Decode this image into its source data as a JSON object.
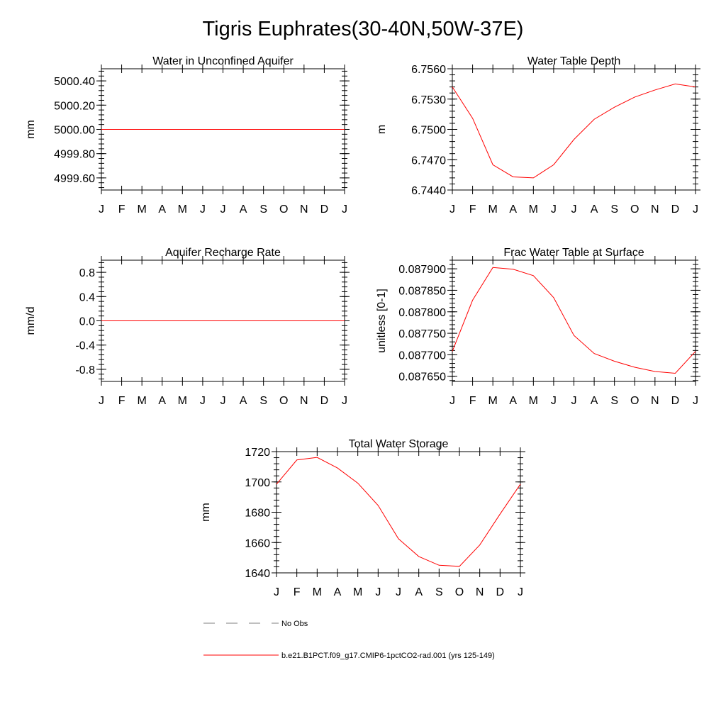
{
  "figure": {
    "title": "Tigris Euphrates(30-40N,50W-37E)"
  },
  "colors": {
    "model_line": "#ff0000",
    "obs_line": "#7f7f7f",
    "axis": "#000000"
  },
  "chart_data": [
    {
      "type": "line",
      "title": "Water in Unconfined Aquifer",
      "xlabel": "",
      "ylabel": "mm",
      "x": [
        "J",
        "F",
        "M",
        "A",
        "M",
        "J",
        "J",
        "A",
        "S",
        "O",
        "N",
        "D",
        "J"
      ],
      "ylim": [
        4999.5,
        5000.5
      ],
      "yticks": [
        4999.6,
        4999.8,
        5000.0,
        5000.2,
        5000.4
      ],
      "ytick_labels": [
        "4999.60",
        "4999.80",
        "5000.00",
        "5000.20",
        "5000.40"
      ],
      "series": [
        {
          "values": [
            5000.0,
            5000.0,
            5000.0,
            5000.0,
            5000.0,
            5000.0,
            5000.0,
            5000.0,
            5000.0,
            5000.0,
            5000.0,
            5000.0,
            5000.0
          ]
        }
      ]
    },
    {
      "type": "line",
      "title": "Water Table Depth",
      "xlabel": "",
      "ylabel": "m",
      "x": [
        "J",
        "F",
        "M",
        "A",
        "M",
        "J",
        "J",
        "A",
        "S",
        "O",
        "N",
        "D",
        "J"
      ],
      "ylim": [
        6.744,
        6.756
      ],
      "yticks": [
        6.744,
        6.747,
        6.75,
        6.753,
        6.756
      ],
      "ytick_labels": [
        "6.7440",
        "6.7470",
        "6.7500",
        "6.7530",
        "6.7560"
      ],
      "series": [
        {
          "values": [
            6.7542,
            6.7511,
            6.7465,
            6.7453,
            6.7452,
            6.7465,
            6.749,
            6.751,
            6.7522,
            6.7532,
            6.7539,
            6.7545,
            6.7542
          ]
        }
      ]
    },
    {
      "type": "line",
      "title": "Aquifer Recharge Rate",
      "xlabel": "",
      "ylabel": "mm/d",
      "x": [
        "J",
        "F",
        "M",
        "A",
        "M",
        "J",
        "J",
        "A",
        "S",
        "O",
        "N",
        "D",
        "J"
      ],
      "ylim": [
        -1.0,
        1.0
      ],
      "yticks": [
        -0.8,
        -0.4,
        0.0,
        0.4,
        0.8
      ],
      "ytick_labels": [
        "-0.8",
        "-0.4",
        "0.0",
        "0.4",
        "0.8"
      ],
      "series": [
        {
          "values": [
            0,
            0,
            0,
            0,
            0,
            0,
            0,
            0,
            0,
            0,
            0,
            0,
            0
          ]
        }
      ]
    },
    {
      "type": "line",
      "title": "Frac Water Table at Surface",
      "xlabel": "",
      "ylabel": "unitless [0-1]",
      "x": [
        "J",
        "F",
        "M",
        "A",
        "M",
        "J",
        "J",
        "A",
        "S",
        "O",
        "N",
        "D",
        "J"
      ],
      "ylim": [
        0.087638,
        0.08792
      ],
      "yticks": [
        0.08765,
        0.0877,
        0.08775,
        0.0878,
        0.08785,
        0.0879
      ],
      "ytick_labels": [
        "0.087650",
        "0.087700",
        "0.087750",
        "0.087800",
        "0.087850",
        "0.087900"
      ],
      "series": [
        {
          "values": [
            0.087708,
            0.087827,
            0.087903,
            0.087899,
            0.087884,
            0.087833,
            0.087745,
            0.087703,
            0.087685,
            0.087671,
            0.087661,
            0.087657,
            0.087708
          ]
        }
      ]
    },
    {
      "type": "line",
      "title": "Total Water Storage",
      "xlabel": "",
      "ylabel": "mm",
      "x": [
        "J",
        "F",
        "M",
        "A",
        "M",
        "J",
        "J",
        "A",
        "S",
        "O",
        "N",
        "D",
        "J"
      ],
      "ylim": [
        1640,
        1720
      ],
      "yticks": [
        1640,
        1660,
        1680,
        1700,
        1720
      ],
      "ytick_labels": [
        "1640",
        "1660",
        "1680",
        "1700",
        "1720"
      ],
      "series": [
        {
          "values": [
            1698.5,
            1714.5,
            1716.2,
            1709.2,
            1699.2,
            1684.5,
            1662.5,
            1650.8,
            1645.0,
            1644.3,
            1658.4,
            1678.8,
            1698.5
          ]
        }
      ]
    }
  ],
  "legend": {
    "items": [
      {
        "label": "No Obs",
        "style": "dashed"
      },
      {
        "label": "b.e21.B1PCT.f09_g17.CMIP6-1pctCO2-rad.001 (yrs 125-149)",
        "style": "solid"
      }
    ]
  }
}
